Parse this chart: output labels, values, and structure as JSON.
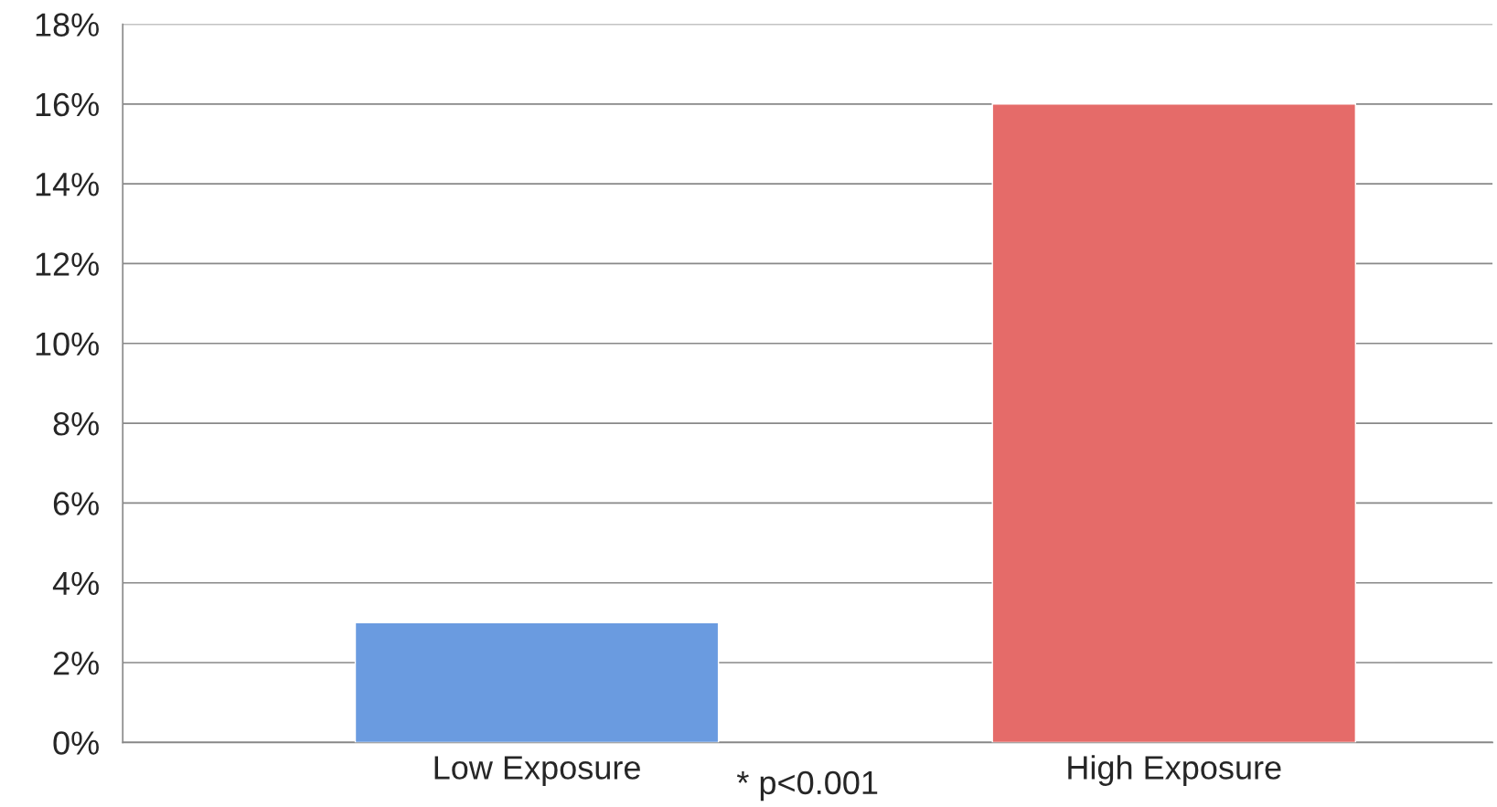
{
  "chart_data": {
    "type": "bar",
    "categories": [
      "Low Exposure",
      "High Exposure"
    ],
    "values": [
      3,
      16
    ],
    "colors": [
      "#6a9be0",
      "#e56b69"
    ],
    "ylim": [
      0,
      18
    ],
    "yticks": [
      {
        "value": 0,
        "label": "0%"
      },
      {
        "value": 2,
        "label": "2%"
      },
      {
        "value": 4,
        "label": "4%"
      },
      {
        "value": 6,
        "label": "6%"
      },
      {
        "value": 8,
        "label": "8%"
      },
      {
        "value": 10,
        "label": "10%"
      },
      {
        "value": 12,
        "label": "12%"
      },
      {
        "value": 14,
        "label": "14%"
      },
      {
        "value": 16,
        "label": "16%"
      },
      {
        "value": 18,
        "label": "18%"
      }
    ],
    "grid": "y",
    "annotations": [
      "* p<0.001"
    ]
  }
}
